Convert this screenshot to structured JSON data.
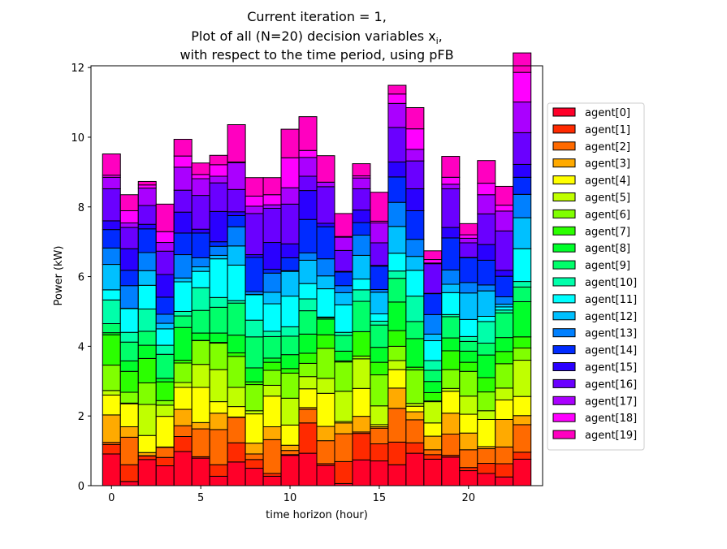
{
  "chart_data": {
    "type": "bar",
    "stacked": true,
    "title_lines": [
      "Current iteration = 1,",
      "Plot of all (N=20) decision variables x",
      "with respect to the time period, using pFB"
    ],
    "title_subscript": "i",
    "title_suffix": ",",
    "xlabel": "time horizon (hour)",
    "ylabel": "Power (kW)",
    "xlim": [
      -1.15,
      24.15
    ],
    "ylim": [
      0,
      12.05
    ],
    "xticks": [
      0,
      5,
      10,
      15,
      20
    ],
    "yticks": [
      0,
      2,
      4,
      6,
      8,
      10,
      12
    ],
    "categories": [
      0,
      1,
      2,
      3,
      4,
      5,
      6,
      7,
      8,
      9,
      10,
      11,
      12,
      13,
      14,
      15,
      16,
      17,
      18,
      19,
      20,
      21,
      22,
      23
    ],
    "legend_position": "outside-right",
    "grid": false,
    "series": [
      {
        "name": "agent[0]",
        "color": "#ff0029",
        "values": [
          0.91,
          0.12,
          0.75,
          0.57,
          0.98,
          0.79,
          0.27,
          0.68,
          0.5,
          0.27,
          0.87,
          0.93,
          0.58,
          0.06,
          0.74,
          0.71,
          0.6,
          0.93,
          0.76,
          0.82,
          0.43,
          0.35,
          0.25,
          0.76
        ]
      },
      {
        "name": "agent[1]",
        "color": "#ff2a00",
        "values": [
          0.27,
          0.48,
          0.1,
          0.24,
          0.43,
          0.04,
          0.33,
          0.55,
          0.25,
          0.08,
          0.02,
          0.87,
          0.05,
          0.63,
          0.76,
          0.49,
          0.65,
          0.3,
          0.13,
          0.05,
          0.09,
          0.29,
          0.38,
          0.2
        ]
      },
      {
        "name": "agent[2]",
        "color": "#ff6a00",
        "values": [
          0.06,
          0.79,
          0.01,
          0.29,
          0.31,
          0.8,
          1.01,
          0.73,
          0.16,
          0.97,
          0.12,
          0.39,
          0.66,
          0.8,
          0.04,
          0.45,
          0.97,
          0.66,
          0.14,
          0.61,
          0.51,
          0.42,
          0.48,
          0.79
        ]
      },
      {
        "name": "agent[3]",
        "color": "#ffaa00",
        "values": [
          0.79,
          0.3,
          0.09,
          0.01,
          0.47,
          0.18,
          0.47,
          0.01,
          0.31,
          0.37,
          0.15,
          0.05,
          0.41,
          0.31,
          0.45,
          0.04,
          0.58,
          0.23,
          0.39,
          0.6,
          0.48,
          0.06,
          0.79,
          0.26
        ]
      },
      {
        "name": "agent[4]",
        "color": "#ffff00",
        "values": [
          0.57,
          0.66,
          0.49,
          0.88,
          0.63,
          1.01,
          0.33,
          0.3,
          0.84,
          0.88,
          0.58,
          0.54,
          0.95,
          0.04,
          0.8,
          0.06,
          0.53,
          0.16,
          0.38,
          0.63,
          0.54,
          0.78,
          0.56,
          0.55
        ]
      },
      {
        "name": "agent[5]",
        "color": "#c0ff00",
        "values": [
          0.13,
          0.02,
          0.89,
          0.32,
          0.14,
          0.66,
          0.92,
          0.55,
          0.09,
          0.31,
          0.77,
          0.35,
          0.43,
          0.87,
          0.85,
          0.54,
          0.26,
          0.08,
          0.61,
          0.08,
          0.52,
          0.25,
          0.34,
          1.04
        ]
      },
      {
        "name": "agent[6]",
        "color": "#80ff00",
        "values": [
          0.73,
          0.31,
          0.62,
          0.13,
          0.56,
          0.68,
          0.76,
          0.89,
          0.75,
          0.43,
          0.72,
          0.38,
          0.86,
          0.84,
          0.08,
          0.89,
          0.41,
          0.96,
          0.02,
          0.54,
          0.71,
          0.54,
          0.7,
          0.35
        ]
      },
      {
        "name": "agent[7]",
        "color": "#2bff00",
        "values": [
          0.87,
          0.6,
          0.7,
          0.54,
          0.08,
          0.01,
          0.02,
          0.1,
          0.08,
          0.23,
          0.13,
          0.29,
          0.39,
          0.03,
          0.7,
          0.36,
          0.45,
          0.08,
          0.24,
          0.54,
          0.26,
          0.41,
          0.35,
          0.32
        ]
      },
      {
        "name": "agent[8]",
        "color": "#00ff2a",
        "values": [
          0.06,
          0.3,
          0.38,
          0.1,
          0.94,
          0.21,
          0.27,
          0.51,
          0.4,
          0.12,
          0.4,
          0.55,
          0.45,
          0.28,
          0.0,
          0.43,
          0.82,
          0.82,
          0.32,
          0.37,
          0.32,
          0.65,
          0.4,
          1.01
        ]
      },
      {
        "name": "agent[9]",
        "color": "#00ff6a",
        "values": [
          0.26,
          0.54,
          0.4,
          0.69,
          0.33,
          0.65,
          0.74,
          0.92,
          0.89,
          0.62,
          0.53,
          0.67,
          0.04,
          0.45,
          0.87,
          0.64,
          0.68,
          0.49,
          0.32,
          0.61,
          0.28,
          0.34,
          0.71,
          0.42
        ]
      },
      {
        "name": "agent[10]",
        "color": "#00ffaa",
        "values": [
          0.68,
          0.28,
          0.64,
          0.26,
          0.13,
          0.65,
          0.28,
          0.07,
          0.48,
          0.15,
          0.27,
          0.34,
          0.02,
          0.09,
          0.33,
          0.11,
          0.21,
          0.73,
          0.28,
          0.06,
          0.14,
          0.62,
          0.08,
          0.16
        ]
      },
      {
        "name": "agent[11]",
        "color": "#00ffff",
        "values": [
          0.29,
          0.68,
          0.68,
          0.47,
          0.85,
          0.47,
          1.11,
          1.02,
          0.73,
          0.79,
          0.88,
          0.44,
          0.81,
          0.79,
          0.31,
          0.21,
          0.51,
          0.74,
          0.57,
          0.63,
          0.49,
          0.15,
          0.09,
          0.94
        ]
      },
      {
        "name": "agent[12]",
        "color": "#00c0ff",
        "values": [
          0.73,
          0.01,
          0.42,
          0.16,
          0.11,
          0.13,
          0.1,
          0.55,
          0.01,
          0.33,
          0.71,
          0.67,
          0.37,
          0.35,
          0.68,
          0.62,
          0.77,
          0.4,
          0.19,
          0.24,
          0.76,
          0.73,
          0.08,
          0.89
        ]
      },
      {
        "name": "agent[13]",
        "color": "#0080ff",
        "values": [
          0.47,
          0.65,
          0.52,
          0.26,
          0.67,
          0.26,
          0.26,
          0.55,
          0.08,
          0.55,
          0.02,
          0.21,
          0.49,
          0.2,
          0.58,
          0.08,
          0.69,
          0.49,
          0.56,
          0.41,
          0.3,
          0.17,
          0.21,
          0.67
        ]
      },
      {
        "name": "agent[14]",
        "color": "#002bff",
        "values": [
          0.53,
          0.44,
          0.68,
          0.49,
          0.62,
          0.71,
          0.13,
          0.32,
          0.98,
          0.11,
          0.37,
          0.96,
          0.92,
          0.39,
          0.36,
          0.67,
          0.73,
          0.82,
          0.6,
          0.92,
          0.71,
          0.71,
          0.59,
          0.49
        ]
      },
      {
        "name": "agent[15]",
        "color": "#2a00ff",
        "values": [
          0.25,
          0.62,
          0.13,
          0.65,
          0.6,
          0.11,
          0.87,
          0.11,
          0.08,
          0.77,
          0.4,
          0.83,
          0.1,
          0.02,
          0.36,
          0.02,
          0.43,
          0.63,
          0.01,
          0.3,
          0.01,
          0.45,
          0.17,
          0.37
        ]
      },
      {
        "name": "agent[16]",
        "color": "#6a00ff",
        "values": [
          0.92,
          0.61,
          0.54,
          0.67,
          0.63,
          0.97,
          0.82,
          0.64,
          1.18,
          0.98,
          1.14,
          0.41,
          1.05,
          0.6,
          0.61,
          0.65,
          0.99,
          0.8,
          0.85,
          1.11,
          0.42,
          0.88,
          1.13,
          0.91
        ]
      },
      {
        "name": "agent[17]",
        "color": "#aa00ff",
        "values": [
          0.33,
          0.13,
          0.5,
          0.25,
          0.66,
          0.48,
          0.19,
          0.77,
          0.21,
          0.1,
          0.47,
          0.54,
          0.13,
          0.38,
          0.31,
          0.57,
          0.69,
          0.33,
          0.02,
          0.13,
          0.13,
          0.55,
          0.57,
          0.88
        ]
      },
      {
        "name": "agent[18]",
        "color": "#ff00ff",
        "values": [
          0.06,
          0.35,
          0.09,
          0.31,
          0.32,
          0.12,
          0.33,
          0.02,
          0.29,
          0.29,
          0.86,
          0.2,
          0.0,
          0.02,
          0.06,
          0.05,
          0.27,
          0.59,
          0.1,
          0.2,
          0.1,
          0.33,
          0.17,
          0.85
        ]
      },
      {
        "name": "agent[19]",
        "color": "#ff00c0",
        "values": [
          0.61,
          0.46,
          0.1,
          0.79,
          0.48,
          0.33,
          0.27,
          1.07,
          0.53,
          0.49,
          0.82,
          0.97,
          0.76,
          0.66,
          0.35,
          0.83,
          0.25,
          0.61,
          0.25,
          0.6,
          0.32,
          0.65,
          0.54,
          0.56
        ]
      }
    ]
  }
}
